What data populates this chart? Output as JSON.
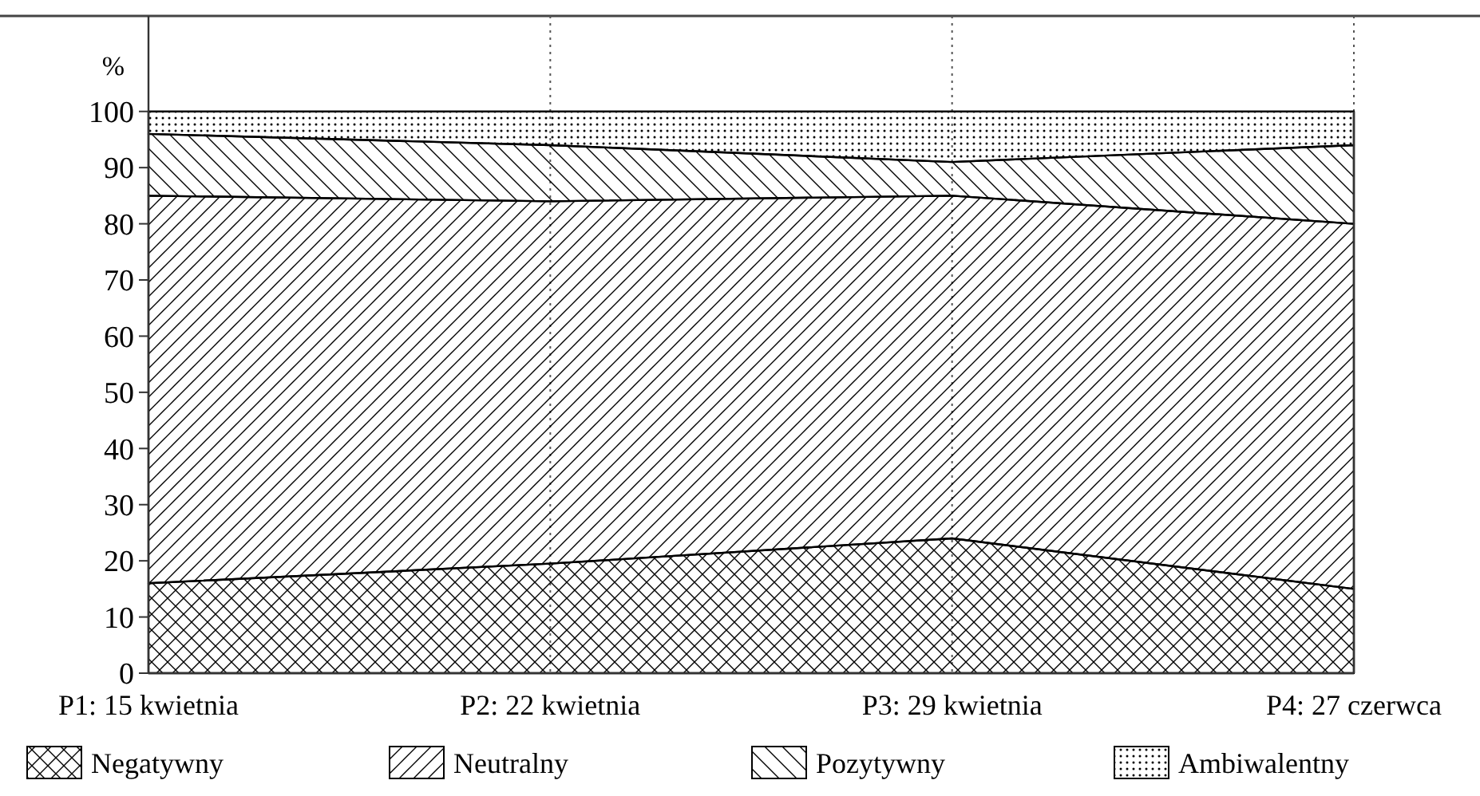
{
  "chart_data": {
    "type": "area",
    "stacked": true,
    "ylabel": "%",
    "categories": [
      "P1: 15 kwietnia",
      "P2: 22 kwietnia",
      "P3: 29 kwietnia",
      "P4: 27 czerwca"
    ],
    "series": [
      {
        "name": "Negatywny",
        "color": "#000000",
        "values": [
          16,
          19.5,
          24,
          15
        ]
      },
      {
        "name": "Neutralny",
        "color": "#000000",
        "values": [
          69,
          64.5,
          61,
          65
        ]
      },
      {
        "name": "Pozytywny",
        "color": "#000000",
        "values": [
          11,
          10,
          6,
          14
        ]
      },
      {
        "name": "Ambiwalentny",
        "color": "#000000",
        "values": [
          4,
          6,
          9,
          6
        ]
      }
    ],
    "ylim": [
      0,
      117
    ],
    "yticks": [
      0,
      10,
      20,
      30,
      40,
      50,
      60,
      70,
      80,
      90,
      100
    ],
    "grid": "x",
    "legend": "bottom"
  }
}
